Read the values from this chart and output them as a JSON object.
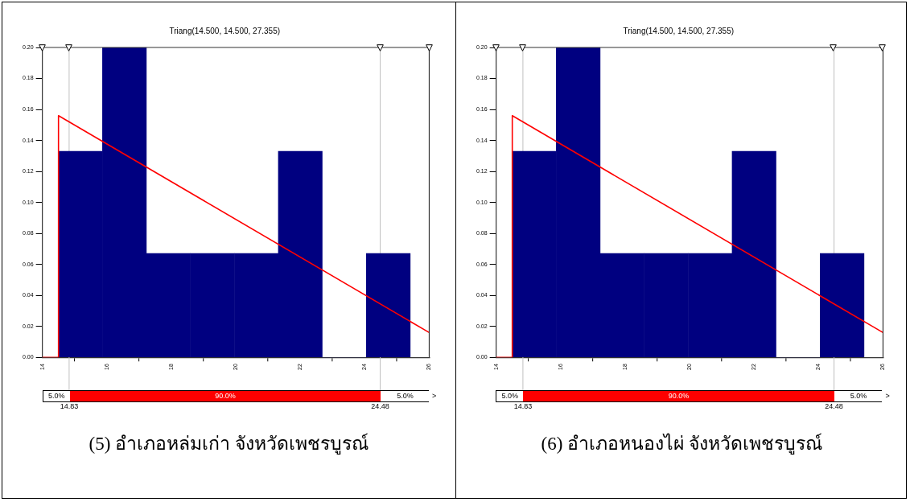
{
  "chart_data": [
    {
      "type": "histogram",
      "title": "Triang(14.500, 14.500, 27.355)",
      "color": "#000080",
      "bins": [
        14.5,
        15.86,
        17.23,
        18.59,
        19.96,
        21.32,
        22.68,
        24.05,
        25.41
      ],
      "values": [
        0.133,
        0.2,
        0.067,
        0.067,
        0.067,
        0.133,
        0,
        0.067
      ],
      "series": [
        {
          "type": "line",
          "color": "#ff0000",
          "x": [
            14,
            14.5,
            14.5,
            26
          ],
          "values": [
            0,
            0,
            0.156,
            0.016
          ]
        }
      ],
      "xlim": [
        14,
        26
      ],
      "xticks": [
        14,
        16,
        18,
        20,
        22,
        24,
        26
      ],
      "ylim": [
        0,
        0.2
      ],
      "yticks": [
        {
          "value": 0,
          "label": "0.00"
        },
        {
          "value": 0.02,
          "label": "0.02"
        },
        {
          "value": 0.04,
          "label": "0.04"
        },
        {
          "value": 0.06,
          "label": "0.06"
        },
        {
          "value": 0.08,
          "label": "0.08"
        },
        {
          "value": 0.1,
          "label": "0.10"
        },
        {
          "value": 0.12,
          "label": "0.12"
        },
        {
          "value": 0.14,
          "label": "0.14"
        },
        {
          "value": 0.16,
          "label": "0.16"
        },
        {
          "value": 0.18,
          "label": "0.18"
        },
        {
          "value": 0.2,
          "label": "0.20"
        }
      ],
      "grid": false,
      "legend": false,
      "ref_lines": [
        {
          "axis": "x",
          "value": 14.83,
          "label": "14.83",
          "color": "#c0c0c0"
        },
        {
          "axis": "x",
          "value": 24.48,
          "label": "24.48",
          "color": "#c0c0c0"
        }
      ],
      "annotations": [
        "5.0%",
        "90.0%",
        "5.0%",
        ">",
        "(5) อำเภอหล่มเก่า  จังหวัดเพชรบูรณ์"
      ]
    },
    {
      "type": "histogram",
      "title": "Triang(14.500, 14.500, 27.355)",
      "color": "#000080",
      "bins": [
        14.5,
        15.86,
        17.23,
        18.59,
        19.96,
        21.32,
        22.68,
        24.05,
        25.41
      ],
      "values": [
        0.133,
        0.2,
        0.067,
        0.067,
        0.067,
        0.133,
        0,
        0.067
      ],
      "series": [
        {
          "type": "line",
          "color": "#ff0000",
          "x": [
            14,
            14.5,
            14.5,
            26
          ],
          "values": [
            0,
            0,
            0.156,
            0.016
          ]
        }
      ],
      "xlim": [
        14,
        26
      ],
      "xticks": [
        14,
        16,
        18,
        20,
        22,
        24,
        26
      ],
      "ylim": [
        0,
        0.2
      ],
      "yticks": [
        {
          "value": 0,
          "label": "0.00"
        },
        {
          "value": 0.02,
          "label": "0.02"
        },
        {
          "value": 0.04,
          "label": "0.04"
        },
        {
          "value": 0.06,
          "label": "0.06"
        },
        {
          "value": 0.08,
          "label": "0.08"
        },
        {
          "value": 0.1,
          "label": "0.10"
        },
        {
          "value": 0.12,
          "label": "0.12"
        },
        {
          "value": 0.14,
          "label": "0.14"
        },
        {
          "value": 0.16,
          "label": "0.16"
        },
        {
          "value": 0.18,
          "label": "0.18"
        },
        {
          "value": 0.2,
          "label": "0.20"
        }
      ],
      "grid": false,
      "legend": false,
      "ref_lines": [
        {
          "axis": "x",
          "value": 14.83,
          "label": "14.83",
          "color": "#c0c0c0"
        },
        {
          "axis": "x",
          "value": 24.48,
          "label": "24.48",
          "color": "#c0c0c0"
        }
      ],
      "annotations": [
        "5.0%",
        "90.0%",
        "5.0%",
        ">",
        "(6) อำเภอหนองไผ่ จังหวัดเพชรบูรณ์"
      ]
    }
  ]
}
